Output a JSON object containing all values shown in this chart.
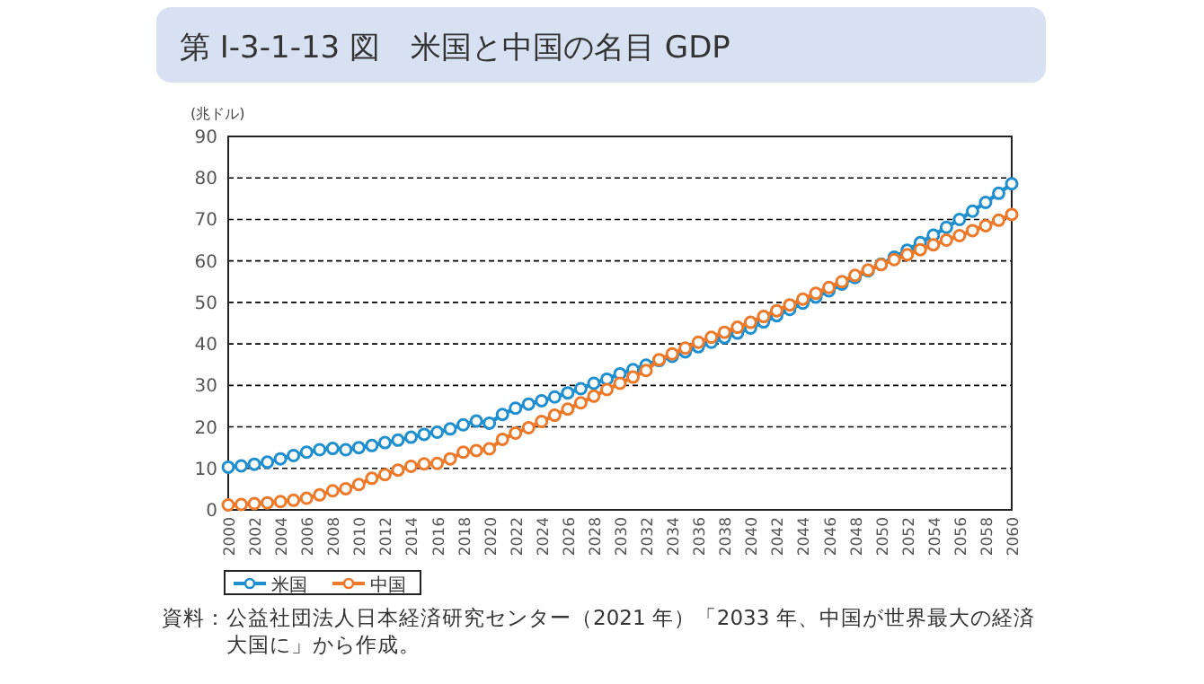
{
  "chart_data": {
    "type": "line",
    "title": "第 Ⅰ-3-1-13 図　米国と中国の名目 GDP",
    "ylabel": "(兆ドル)",
    "x": [
      2000,
      2001,
      2002,
      2003,
      2004,
      2005,
      2006,
      2007,
      2008,
      2009,
      2010,
      2011,
      2012,
      2013,
      2014,
      2015,
      2016,
      2017,
      2018,
      2019,
      2020,
      2021,
      2022,
      2023,
      2024,
      2025,
      2026,
      2027,
      2028,
      2029,
      2030,
      2031,
      2032,
      2033,
      2034,
      2035,
      2036,
      2037,
      2038,
      2039,
      2040,
      2041,
      2042,
      2043,
      2044,
      2045,
      2046,
      2047,
      2048,
      2049,
      2050,
      2051,
      2052,
      2053,
      2054,
      2055,
      2056,
      2057,
      2058,
      2059,
      2060
    ],
    "series": [
      {
        "name": "米国",
        "color": "#1f8fd0",
        "values": [
          10.3,
          10.6,
          11.0,
          11.5,
          12.3,
          13.1,
          13.9,
          14.5,
          14.8,
          14.5,
          15.0,
          15.5,
          16.2,
          16.8,
          17.5,
          18.2,
          18.7,
          19.5,
          20.5,
          21.4,
          20.9,
          23.0,
          24.5,
          25.5,
          26.3,
          27.2,
          28.2,
          29.2,
          30.5,
          31.5,
          32.8,
          33.8,
          34.9,
          36.0,
          37.0,
          38.1,
          39.3,
          40.4,
          41.5,
          42.6,
          43.8,
          45.3,
          46.8,
          48.3,
          49.8,
          51.3,
          52.8,
          54.4,
          56.0,
          57.6,
          59.2,
          60.9,
          62.6,
          64.4,
          66.2,
          68.1,
          70.0,
          72.0,
          74.1,
          76.3,
          78.6
        ]
      },
      {
        "name": "中国",
        "color": "#ec7a2a",
        "values": [
          1.2,
          1.3,
          1.5,
          1.7,
          2.0,
          2.3,
          2.8,
          3.6,
          4.6,
          5.1,
          6.1,
          7.6,
          8.5,
          9.6,
          10.5,
          11.1,
          11.2,
          12.3,
          13.9,
          14.3,
          14.7,
          17.0,
          18.5,
          19.8,
          21.3,
          22.8,
          24.3,
          25.8,
          27.4,
          29.0,
          30.5,
          32.0,
          33.6,
          36.2,
          37.6,
          39.0,
          40.4,
          41.6,
          42.8,
          44.0,
          45.2,
          46.6,
          48.0,
          49.4,
          50.8,
          52.2,
          53.6,
          55.0,
          56.5,
          57.8,
          59.1,
          60.3,
          61.5,
          62.7,
          63.9,
          65.0,
          66.1,
          67.3,
          68.5,
          69.8,
          71.2
        ]
      }
    ],
    "xlim": [
      2000,
      2060
    ],
    "xticks": [
      2000,
      2002,
      2004,
      2006,
      2008,
      2010,
      2012,
      2014,
      2016,
      2018,
      2020,
      2022,
      2024,
      2026,
      2028,
      2030,
      2032,
      2034,
      2036,
      2038,
      2040,
      2042,
      2044,
      2046,
      2048,
      2050,
      2052,
      2054,
      2056,
      2058,
      2060
    ],
    "ylim": [
      0,
      90
    ],
    "yticks": [
      0,
      10,
      20,
      30,
      40,
      50,
      60,
      70,
      80,
      90
    ],
    "grid": "y",
    "line_style": "solid",
    "marker": "circle",
    "legend": "bottom left",
    "annotations": [
      "資料：公益社団法人日本経済研究センター（2021 年）「2033 年、中国が世界最大の経済大国に」から作成。"
    ]
  }
}
